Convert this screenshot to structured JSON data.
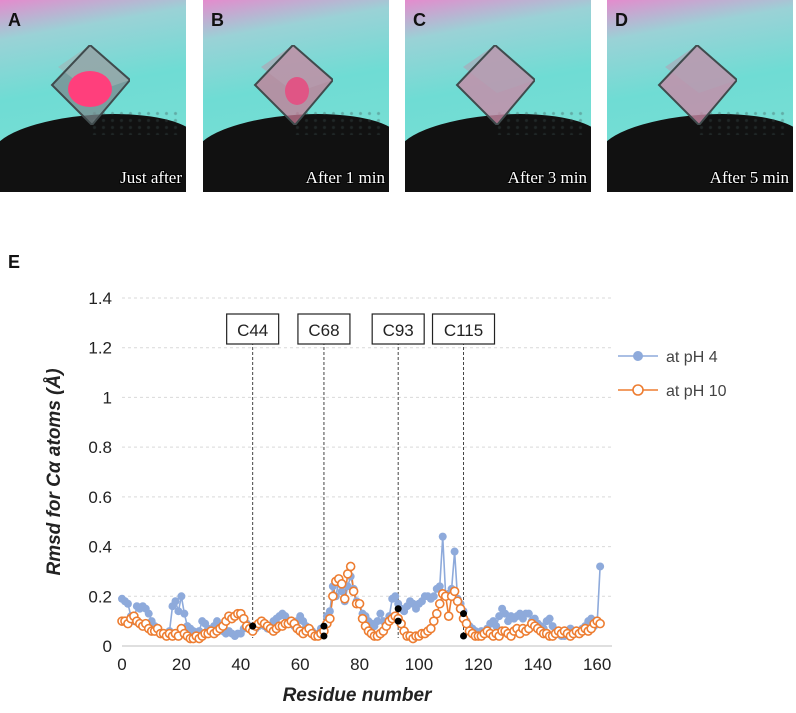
{
  "panels": [
    {
      "letter": "A",
      "caption": "Just after"
    },
    {
      "letter": "B",
      "caption": "After 1 min"
    },
    {
      "letter": "C",
      "caption": "After 3 min"
    },
    {
      "letter": "D",
      "caption": "After 5 min"
    }
  ],
  "panel_e_letter": "E",
  "colors": {
    "ph4": "#8eaadb",
    "ph10": "#ed7d31",
    "marker": "#000000",
    "grid": "#d9d9d9"
  },
  "chart_data": {
    "type": "line",
    "title": "",
    "xlabel": "Residue number",
    "ylabel": "Rmsd for Cα atoms (Å)",
    "xlim": [
      0,
      165
    ],
    "ylim": [
      0,
      1.4
    ],
    "xticks": [
      0,
      20,
      40,
      60,
      80,
      100,
      120,
      140,
      160
    ],
    "yticks": [
      0,
      0.2,
      0.4,
      0.6,
      0.8,
      1,
      1.2,
      1.4
    ],
    "ytick_labels": [
      "0",
      "0.2",
      "0.4",
      "0.6",
      "0.8",
      "1",
      "1.2",
      "1.4"
    ],
    "annotations": [
      {
        "label": "C44",
        "x": 44
      },
      {
        "label": "C68",
        "x": 68
      },
      {
        "label": "C93",
        "x": 93
      },
      {
        "label": "C115",
        "x": 115
      }
    ],
    "cys_points": [
      {
        "x": 44,
        "y": 0.08
      },
      {
        "x": 68,
        "y": 0.08
      },
      {
        "x": 68,
        "y": 0.04
      },
      {
        "x": 93,
        "y": 0.15
      },
      {
        "x": 93,
        "y": 0.1
      },
      {
        "x": 115,
        "y": 0.13
      },
      {
        "x": 115,
        "y": 0.04
      }
    ],
    "legend_position": "top-right",
    "series": [
      {
        "name": "at pH 4",
        "marker": "filled",
        "values": [
          0.19,
          0.18,
          0.17,
          0.12,
          0.1,
          0.16,
          0.15,
          0.16,
          0.15,
          0.13,
          0.1,
          0.08,
          0.06,
          0.05,
          0.05,
          0.04,
          0.06,
          0.16,
          0.18,
          0.14,
          0.2,
          0.13,
          0.08,
          0.07,
          0.06,
          0.05,
          0.06,
          0.1,
          0.09,
          0.07,
          0.06,
          0.08,
          0.1,
          0.08,
          0.06,
          0.05,
          0.06,
          0.05,
          0.04,
          0.05,
          0.05,
          0.07,
          0.09,
          0.08,
          0.07,
          0.07,
          0.08,
          0.09,
          0.08,
          0.07,
          0.08,
          0.1,
          0.11,
          0.12,
          0.13,
          0.12,
          0.1,
          0.09,
          0.08,
          0.1,
          0.12,
          0.1,
          0.08,
          0.07,
          0.06,
          0.04,
          0.05,
          0.07,
          0.07,
          0.12,
          0.14,
          0.24,
          0.2,
          0.26,
          0.22,
          0.18,
          0.24,
          0.28,
          0.23,
          0.18,
          0.17,
          0.13,
          0.12,
          0.1,
          0.09,
          0.08,
          0.1,
          0.13,
          0.1,
          0.08,
          0.12,
          0.19,
          0.2,
          0.17,
          0.15,
          0.14,
          0.16,
          0.18,
          0.17,
          0.15,
          0.17,
          0.18,
          0.2,
          0.2,
          0.19,
          0.2,
          0.23,
          0.24,
          0.44,
          0.2,
          0.21,
          0.23,
          0.38,
          0.19,
          0.17,
          0.14,
          0.1,
          0.08,
          0.07,
          0.06,
          0.05,
          0.06,
          0.05,
          0.07,
          0.09,
          0.1,
          0.08,
          0.12,
          0.15,
          0.13,
          0.1,
          0.12,
          0.11,
          0.12,
          0.13,
          0.11,
          0.13,
          0.13,
          0.1,
          0.11,
          0.09,
          0.08,
          0.07,
          0.1,
          0.11,
          0.08,
          0.06,
          0.05,
          0.04,
          0.04,
          0.05,
          0.07,
          0.06,
          0.05,
          0.06,
          0.07,
          0.08,
          0.1,
          0.11,
          0.08,
          0.09,
          0.32
        ]
      },
      {
        "name": "at pH 10",
        "marker": "open",
        "values": [
          0.1,
          0.1,
          0.09,
          0.11,
          0.12,
          0.1,
          0.09,
          0.08,
          0.09,
          0.07,
          0.06,
          0.06,
          0.07,
          0.05,
          0.05,
          0.04,
          0.05,
          0.04,
          0.05,
          0.04,
          0.07,
          0.05,
          0.04,
          0.03,
          0.03,
          0.04,
          0.03,
          0.04,
          0.05,
          0.05,
          0.06,
          0.05,
          0.06,
          0.07,
          0.08,
          0.1,
          0.12,
          0.11,
          0.12,
          0.13,
          0.13,
          0.11,
          0.08,
          0.07,
          0.06,
          0.08,
          0.09,
          0.1,
          0.09,
          0.08,
          0.07,
          0.06,
          0.07,
          0.08,
          0.08,
          0.09,
          0.09,
          0.1,
          0.09,
          0.07,
          0.06,
          0.05,
          0.06,
          0.07,
          0.05,
          0.04,
          0.04,
          0.05,
          0.06,
          0.09,
          0.11,
          0.2,
          0.26,
          0.27,
          0.25,
          0.19,
          0.29,
          0.32,
          0.22,
          0.17,
          0.17,
          0.11,
          0.08,
          0.06,
          0.05,
          0.04,
          0.04,
          0.05,
          0.06,
          0.08,
          0.1,
          0.11,
          0.12,
          0.11,
          0.09,
          0.06,
          0.04,
          0.04,
          0.03,
          0.04,
          0.04,
          0.05,
          0.05,
          0.06,
          0.07,
          0.1,
          0.13,
          0.17,
          0.21,
          0.2,
          0.12,
          0.2,
          0.22,
          0.18,
          0.15,
          0.11,
          0.09,
          0.06,
          0.05,
          0.04,
          0.04,
          0.04,
          0.05,
          0.06,
          0.05,
          0.04,
          0.05,
          0.04,
          0.06,
          0.06,
          0.05,
          0.04,
          0.06,
          0.07,
          0.05,
          0.07,
          0.06,
          0.07,
          0.09,
          0.08,
          0.07,
          0.06,
          0.05,
          0.05,
          0.04,
          0.04,
          0.05,
          0.06,
          0.05,
          0.06,
          0.05,
          0.04,
          0.05,
          0.06,
          0.05,
          0.06,
          0.07,
          0.06,
          0.07,
          0.09,
          0.1,
          0.09
        ]
      }
    ]
  }
}
